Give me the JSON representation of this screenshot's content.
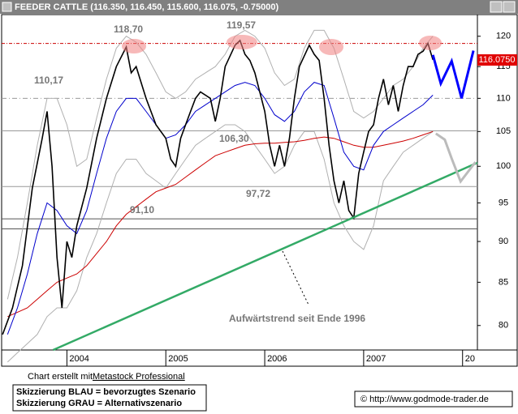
{
  "chart_data": {
    "type": "line",
    "title": "FEEDER CATTLE (116.350, 116.450, 115.600, 116.075, -0.75000)",
    "log_scale": true,
    "xlim": [
      2003.34,
      2008.15
    ],
    "xticks": [
      2004,
      2005,
      2006,
      2007,
      {
        "value": 2008,
        "label": "20"
      }
    ],
    "ylim": [
      77.3,
      123.7
    ],
    "yticks": [
      80,
      85,
      90,
      95,
      100,
      105,
      110,
      115,
      120
    ],
    "x": [
      2003.4,
      2003.5,
      2003.6,
      2003.7,
      2003.8,
      2003.9,
      2004.0,
      2004.1,
      2004.2,
      2004.3,
      2004.4,
      2004.5,
      2004.6,
      2004.7,
      2004.8,
      2004.9,
      2005.0,
      2005.1,
      2005.2,
      2005.3,
      2005.4,
      2005.5,
      2005.6,
      2005.7,
      2005.8,
      2005.9,
      2006.0,
      2006.1,
      2006.2,
      2006.3,
      2006.4,
      2006.5,
      2006.6,
      2006.7,
      2006.8,
      2006.9,
      2007.0,
      2007.1,
      2007.2,
      2007.3,
      2007.4,
      2007.5,
      2007.6,
      2007.7
    ],
    "series": [
      {
        "color": "#000000",
        "width": 1.6,
        "x": [
          2003.35,
          2003.45,
          2003.55,
          2003.65,
          2003.75,
          2003.8,
          2003.85,
          2003.9,
          2003.95,
          2004.0,
          2004.05,
          2004.1,
          2004.2,
          2004.3,
          2004.4,
          2004.5,
          2004.6,
          2004.65,
          2004.7,
          2004.8,
          2004.9,
          2005.0,
          2005.05,
          2005.1,
          2005.15,
          2005.2,
          2005.25,
          2005.3,
          2005.35,
          2005.45,
          2005.5,
          2005.55,
          2005.6,
          2005.7,
          2005.75,
          2005.8,
          2005.85,
          2005.9,
          2006.0,
          2006.05,
          2006.1,
          2006.15,
          2006.2,
          2006.25,
          2006.3,
          2006.35,
          2006.45,
          2006.5,
          2006.55,
          2006.6,
          2006.65,
          2006.7,
          2006.75,
          2006.8,
          2006.85,
          2006.9,
          2006.95,
          2007.0,
          2007.05,
          2007.1,
          2007.15,
          2007.2,
          2007.25,
          2007.3,
          2007.35,
          2007.4,
          2007.45,
          2007.5,
          2007.55,
          2007.6,
          2007.65,
          2007.7
        ],
        "values": [
          79,
          82,
          87,
          97,
          104,
          108,
          100,
          88,
          82,
          90,
          88,
          92,
          97,
          104,
          110,
          115,
          118.2,
          114,
          115,
          110,
          106,
          104,
          101,
          100,
          104,
          106,
          108,
          110,
          111,
          110,
          106.5,
          110,
          115,
          118.5,
          119.3,
          117,
          116,
          114,
          108,
          103,
          100,
          103,
          100,
          104,
          110,
          115,
          118.5,
          117,
          116,
          110,
          103,
          98,
          95,
          98,
          94,
          93,
          99,
          102,
          105,
          106,
          110,
          113,
          109,
          112,
          108,
          112,
          115,
          115,
          117,
          117.5,
          118.8,
          116.1
        ]
      },
      {
        "color": "#0000cc",
        "width": 1,
        "values": [
          79,
          82,
          86,
          91,
          95,
          94,
          92,
          91,
          94,
          99,
          104,
          108,
          110,
          110,
          108,
          106,
          104,
          104.5,
          106,
          108,
          109,
          110,
          111,
          112,
          112.5,
          112,
          110,
          107.5,
          106.5,
          108,
          111,
          112.5,
          112,
          107,
          102,
          100,
          99.5,
          103,
          105,
          106,
          107,
          108,
          109,
          110.5
        ]
      },
      {
        "color": "#cc0000",
        "width": 1,
        "values": [
          81,
          81.5,
          82,
          83,
          84,
          85,
          85.5,
          86,
          87,
          88.5,
          90,
          92,
          93.5,
          94.5,
          95.5,
          96.5,
          97,
          97.5,
          98.5,
          99.5,
          100.5,
          101.5,
          102,
          102.5,
          103,
          103.2,
          103.3,
          103.3,
          103.4,
          103.5,
          103.7,
          104,
          104.2,
          104,
          103.5,
          103,
          102.7,
          102.7,
          103,
          103.3,
          103.6,
          104,
          104.5,
          105
        ]
      },
      {
        "color": "#b0b0b0",
        "width": 1,
        "values": [
          83,
          88,
          95,
          103,
          110,
          110,
          106,
          100,
          101,
          107,
          113,
          118,
          120,
          119,
          117,
          114,
          111,
          110,
          111,
          113,
          114,
          115,
          117,
          120,
          121,
          120,
          118,
          114,
          112,
          113,
          118,
          121,
          121,
          118,
          113,
          108,
          107,
          108,
          110,
          112,
          113,
          115,
          118,
          120
        ]
      },
      {
        "color": "#b0b0b0",
        "width": 1,
        "values": [
          76,
          77,
          78,
          79,
          81,
          82,
          82,
          84,
          88,
          91,
          95,
          99,
          101,
          101,
          99,
          98,
          97,
          99,
          101,
          103,
          104,
          105,
          106,
          106,
          105,
          103,
          101,
          99,
          100,
          103,
          105,
          105,
          101,
          95,
          92,
          90,
          89,
          92,
          98,
          100,
          102,
          103,
          104,
          105
        ]
      }
    ],
    "levels": [
      {
        "value": 118.8,
        "color": "#cc0000",
        "dash": "4 2 1 2"
      },
      {
        "value": 110.0,
        "color": "#999999",
        "dash": "6 3 1 3"
      },
      {
        "value": 105.1,
        "color": "#999999",
        "dash": ""
      },
      {
        "value": 97.2,
        "color": "#999999",
        "dash": ""
      },
      {
        "value": 92.9,
        "color": "#555555",
        "dash": ""
      },
      {
        "value": 91.6,
        "color": "#555555",
        "dash": ""
      }
    ],
    "trendline": {
      "color": "#33aa66",
      "x": [
        2003.86,
        2008.15
      ],
      "values": [
        77.3,
        100.5
      ]
    },
    "scenarios": [
      {
        "color": "#0000ff",
        "x": [
          2007.7,
          2007.78,
          2007.89,
          2007.99,
          2008.11
        ],
        "values": [
          116.9,
          112.3,
          115.9,
          110.0,
          117.6
        ]
      },
      {
        "color": "#bbbbbb",
        "x": [
          2007.73,
          2007.82,
          2007.89,
          2007.98,
          2008.13
        ],
        "values": [
          104.7,
          103.8,
          101.1,
          97.9,
          100.6
        ]
      }
    ],
    "annotations": [
      "118,70",
      "119,57",
      "110,17",
      "106,30",
      "97,72",
      "91,10"
    ],
    "trend_label": "Aufwärtstrend seit Ende 1996",
    "last": {
      "value": 116.075,
      "label": "116.0750"
    }
  },
  "footer": {
    "credit_prefix": "Chart erstellt mit",
    "credit_link": "Metastock Professional",
    "legend": [
      "Skizzierung BLAU = bevorzugtes Szenario",
      "Skizzierung GRAU = Alternativszenario"
    ],
    "copyright": "© http://www.godmode-trader.de"
  }
}
